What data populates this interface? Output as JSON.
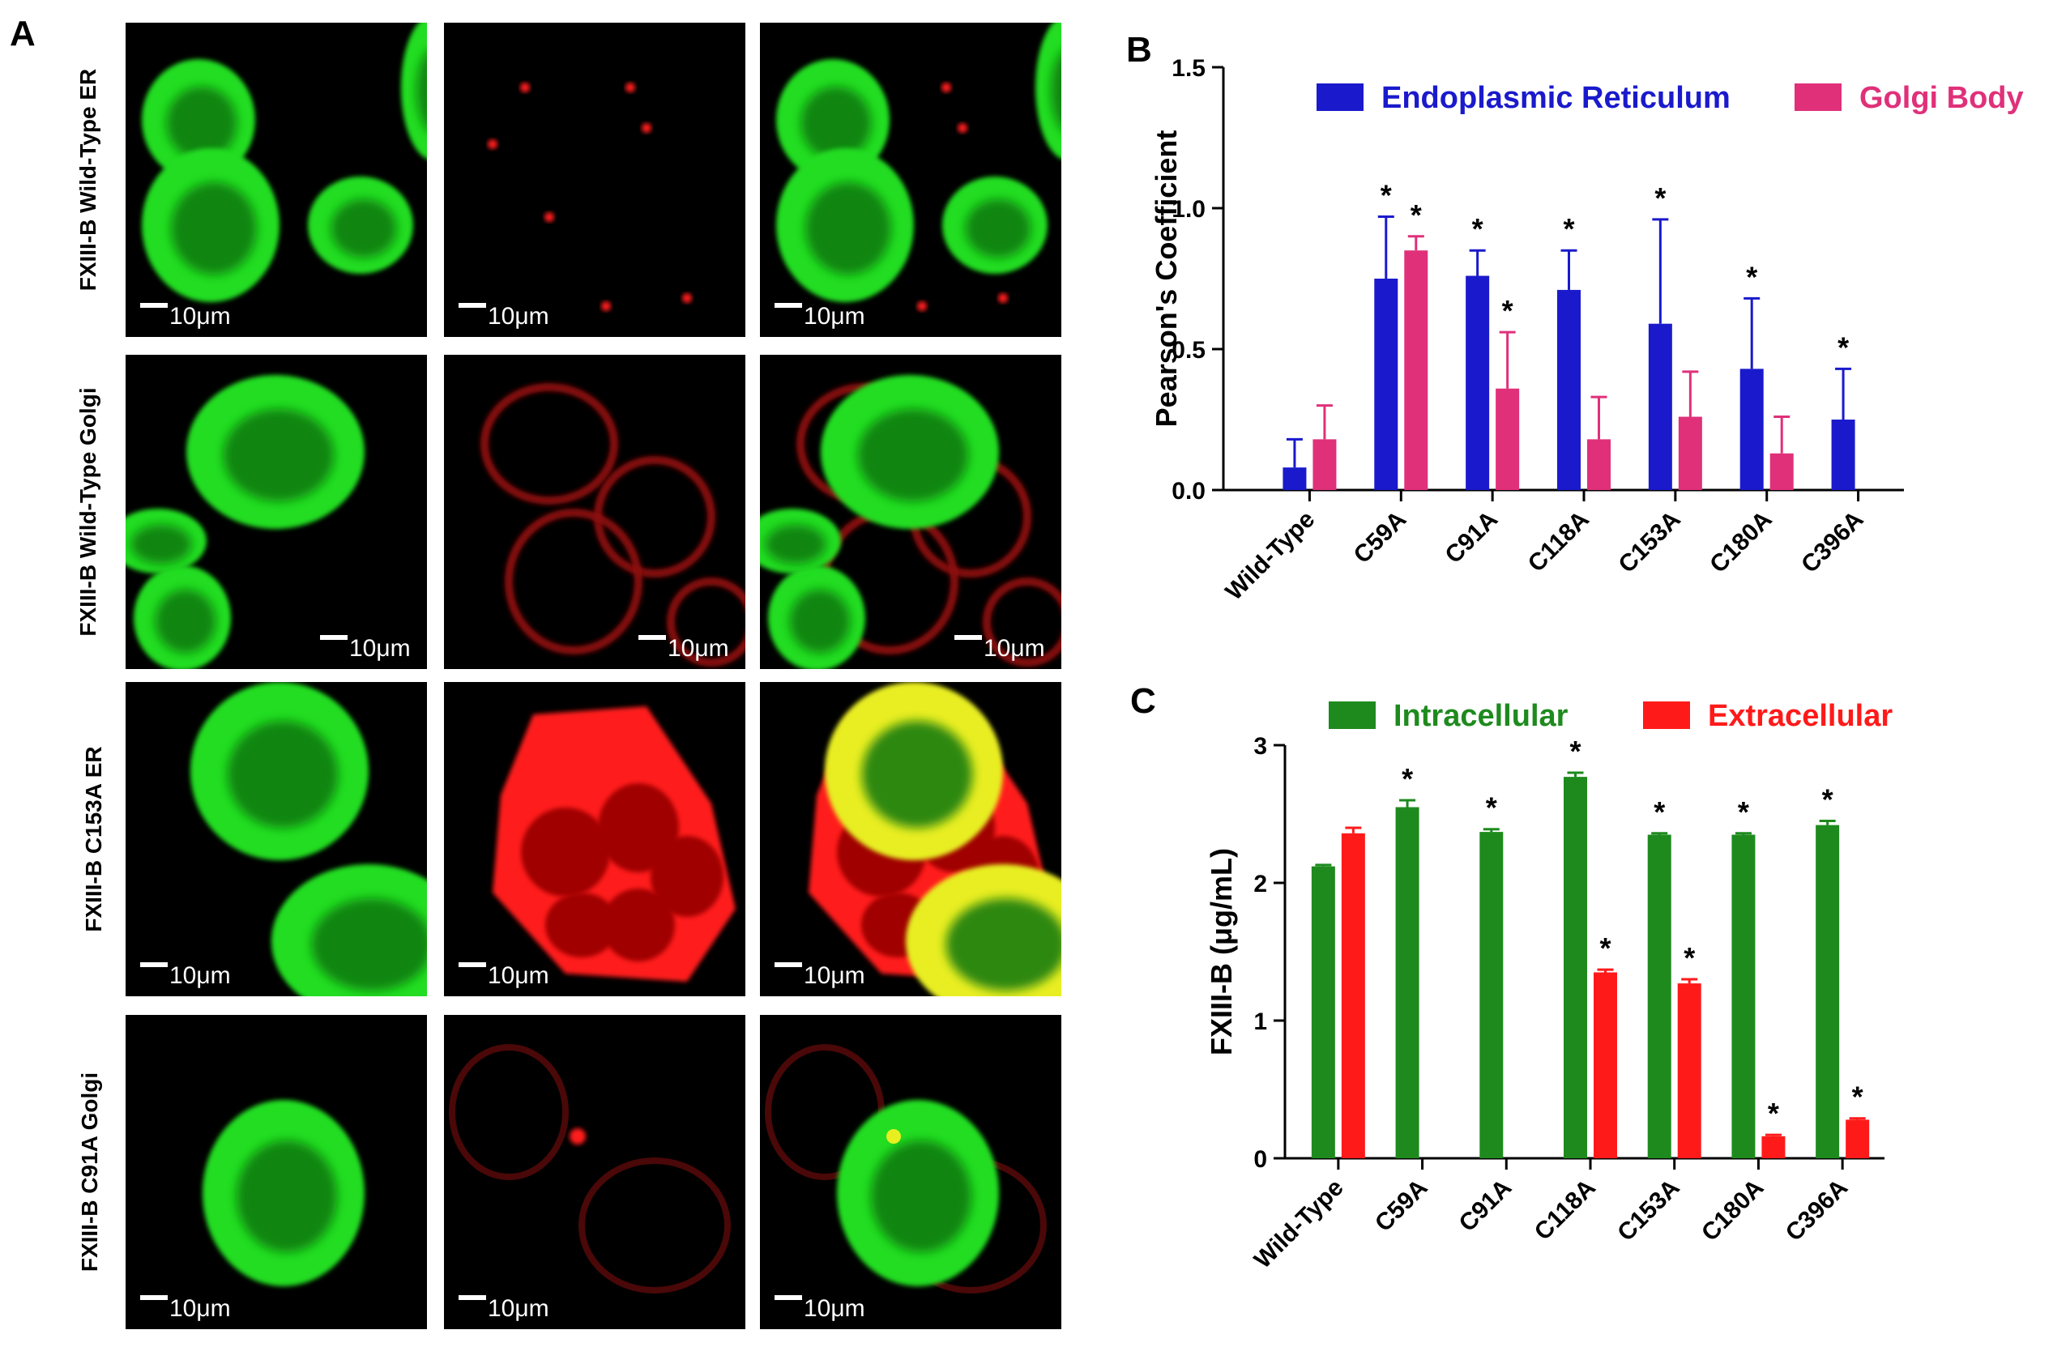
{
  "panels": {
    "a_letter": "A",
    "b_letter": "B",
    "c_letter": "C"
  },
  "micrographs": {
    "rows": [
      {
        "label": "FXIII-B Wild-Type ER",
        "pattern": "wt-er"
      },
      {
        "label": "FXIII-B Wild-Type Golgi",
        "pattern": "wt-golgi"
      },
      {
        "label": "FXIII-B C153A ER",
        "pattern": "c153a-er"
      },
      {
        "label": "FXIII-B C91A Golgi",
        "pattern": "c91a-golgi"
      }
    ],
    "scale_bar_label": "10μm",
    "colors": {
      "green": "#22dd22",
      "red": "#ff1a1a",
      "yellow": "#e8ee20",
      "background": "#000000"
    }
  },
  "chart_data": [
    {
      "panel": "B",
      "type": "bar",
      "ylabel": "Pearson's Coefficient",
      "ylim": [
        0,
        1.5
      ],
      "yticks": [
        "0.0",
        "0.5",
        "1.0",
        "1.5"
      ],
      "categories": [
        "Wild-Type",
        "C59A",
        "C91A",
        "C118A",
        "C153A",
        "C180A",
        "C396A"
      ],
      "legend_position": "top",
      "series": [
        {
          "name": "Endoplasmic Reticulum",
          "color": "#1a1acc",
          "values": [
            0.08,
            0.75,
            0.76,
            0.71,
            0.59,
            0.43,
            0.25
          ],
          "errors": [
            0.1,
            0.22,
            0.09,
            0.14,
            0.37,
            0.25,
            0.18
          ],
          "significant": [
            false,
            true,
            true,
            true,
            true,
            true,
            true
          ]
        },
        {
          "name": "Golgi Body",
          "color": "#e0307a",
          "values": [
            0.18,
            0.85,
            0.36,
            0.18,
            0.26,
            0.13,
            null
          ],
          "errors": [
            0.12,
            0.05,
            0.2,
            0.15,
            0.16,
            0.13,
            null
          ],
          "significant": [
            false,
            true,
            true,
            false,
            false,
            false,
            false
          ]
        }
      ],
      "significance_marker": "*"
    },
    {
      "panel": "C",
      "type": "bar",
      "ylabel": "FXIII-B (μg/mL)",
      "ylim": [
        0,
        3
      ],
      "yticks": [
        "0",
        "1",
        "2",
        "3"
      ],
      "categories": [
        "Wild-Type",
        "C59A",
        "C91A",
        "C118A",
        "C153A",
        "C180A",
        "C396A"
      ],
      "legend_position": "top",
      "series": [
        {
          "name": "Intracellular",
          "color": "#1e8a1e",
          "values": [
            2.12,
            2.55,
            2.37,
            2.77,
            2.35,
            2.35,
            2.42
          ],
          "errors": [
            0.01,
            0.05,
            0.02,
            0.03,
            0.01,
            0.01,
            0.03
          ],
          "significant": [
            false,
            true,
            true,
            true,
            true,
            true,
            true
          ]
        },
        {
          "name": "Extracellular",
          "color": "#ff1a1a",
          "values": [
            2.36,
            null,
            null,
            1.35,
            1.27,
            0.16,
            0.28
          ],
          "errors": [
            0.04,
            null,
            null,
            0.02,
            0.03,
            0.01,
            0.01
          ],
          "significant": [
            false,
            false,
            false,
            true,
            true,
            true,
            true
          ]
        }
      ],
      "significance_marker": "*"
    }
  ]
}
